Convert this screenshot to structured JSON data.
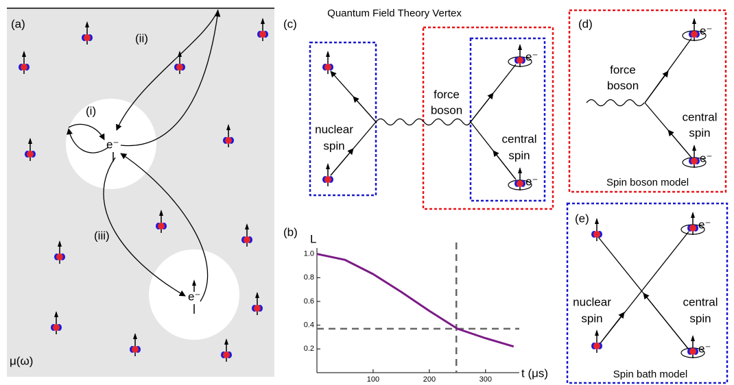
{
  "panel_a": {
    "label": "(a)",
    "paths": [
      "(i)",
      "(ii)",
      "(iii)"
    ],
    "electrons": [
      "e⁻",
      "e⁻"
    ],
    "footer": "μ(ω)"
  },
  "panel_c": {
    "label": "(c)",
    "title": "Quantum Field Theory Vertex",
    "nuclear_spin": [
      "nuclear",
      "spin"
    ],
    "force_boson": [
      "force",
      "boson"
    ],
    "central_spin": [
      "central",
      "spin"
    ],
    "electrons": [
      "e⁻",
      "e⁻"
    ]
  },
  "panel_d": {
    "label": "(d)",
    "force_boson": [
      "force",
      "boson"
    ],
    "central_spin": [
      "central",
      "spin"
    ],
    "electrons": [
      "e⁻",
      "e⁻"
    ],
    "caption": "Spin boson model"
  },
  "panel_e": {
    "label": "(e)",
    "nuclear_spin": [
      "nuclear",
      "spin"
    ],
    "central_spin": [
      "central",
      "spin"
    ],
    "electrons": [
      "e⁻",
      "e⁻"
    ],
    "caption": "Spin bath model"
  },
  "chart_data": {
    "type": "line",
    "panel_label": "(b)",
    "ylabel": "L",
    "xlabel": "t (μs)",
    "x": [
      0,
      50,
      100,
      150,
      200,
      250,
      300,
      350
    ],
    "series": [
      {
        "color": "#7b1a86",
        "values": [
          1.0,
          0.95,
          0.83,
          0.68,
          0.52,
          0.37,
          0.29,
          0.22
        ]
      }
    ],
    "xlim": [
      0,
      360
    ],
    "ylim": [
      0,
      1.05
    ],
    "xticks": [
      100,
      200,
      300
    ],
    "yticks": [
      0.2,
      0.4,
      0.6,
      0.8,
      {
        "value": 1,
        "label": "1.0"
      }
    ],
    "guide_lines": {
      "x": 248,
      "y": 0.37,
      "color": "#666666"
    }
  }
}
